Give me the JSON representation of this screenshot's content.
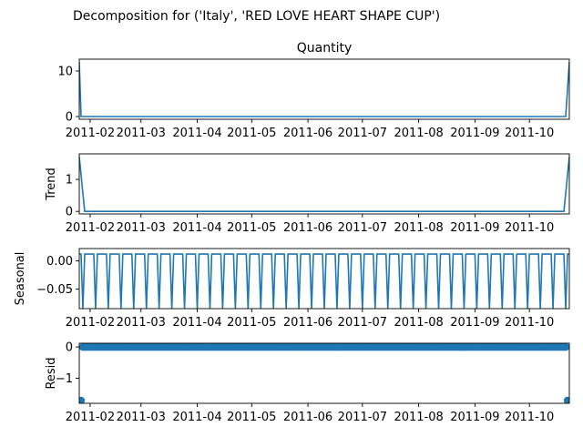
{
  "figure_title": "Decomposition for ('Italy', 'RED LOVE HEART SHAPE CUP')",
  "colors": {
    "line": "#1f77b4",
    "axis": "#000000",
    "background": "#ffffff"
  },
  "x_tick_labels": [
    "2011-02",
    "2011-03",
    "2011-04",
    "2011-05",
    "2011-06",
    "2011-07",
    "2011-08",
    "2011-09",
    "2011-10"
  ],
  "chart_data": [
    {
      "type": "line",
      "title": "Quantity",
      "ylabel": "",
      "ylim": [
        -0.6,
        12.6
      ],
      "yticks": [
        0,
        10
      ],
      "x_range": [
        "2011-01-26",
        "2011-10-23"
      ],
      "series": [
        {
          "x": [
            "2011-01-26",
            "2011-01-27",
            "2011-10-21",
            "2011-10-23"
          ],
          "values": [
            12,
            0,
            0,
            12
          ]
        }
      ]
    },
    {
      "type": "line",
      "title": "",
      "ylabel": "Trend",
      "ylim": [
        -0.08,
        1.8
      ],
      "yticks": [
        0,
        1
      ],
      "x_range": [
        "2011-01-26",
        "2011-10-23"
      ],
      "series": [
        {
          "x": [
            "2011-01-26",
            "2011-01-29",
            "2011-10-20",
            "2011-10-23"
          ],
          "values": [
            1.71,
            0,
            0,
            1.71
          ]
        }
      ]
    },
    {
      "type": "line",
      "title": "",
      "ylabel": "Seasonal",
      "ylim": [
        -0.085,
        0.022
      ],
      "yticks": [
        0.0,
        -0.05
      ],
      "ytick_labels": [
        "0.00",
        "−0.05"
      ],
      "x_range": [
        "2011-01-26",
        "2011-10-23"
      ],
      "pattern": {
        "period_days": 7,
        "high": 0.0122,
        "low": -0.0857,
        "first_dip": "2011-01-28"
      }
    },
    {
      "type": "scatter",
      "title": "",
      "ylabel": "Resid",
      "ylim": [
        -1.8,
        0.12
      ],
      "yticks": [
        0,
        -1
      ],
      "ytick_labels": [
        "0",
        "−1"
      ],
      "x_range": [
        "2011-01-26",
        "2011-10-23"
      ],
      "baseline_value": 0,
      "outliers": [
        {
          "x": "2011-01-27",
          "value": -1.71
        },
        {
          "x": "2011-10-22",
          "value": -1.71
        }
      ]
    }
  ]
}
